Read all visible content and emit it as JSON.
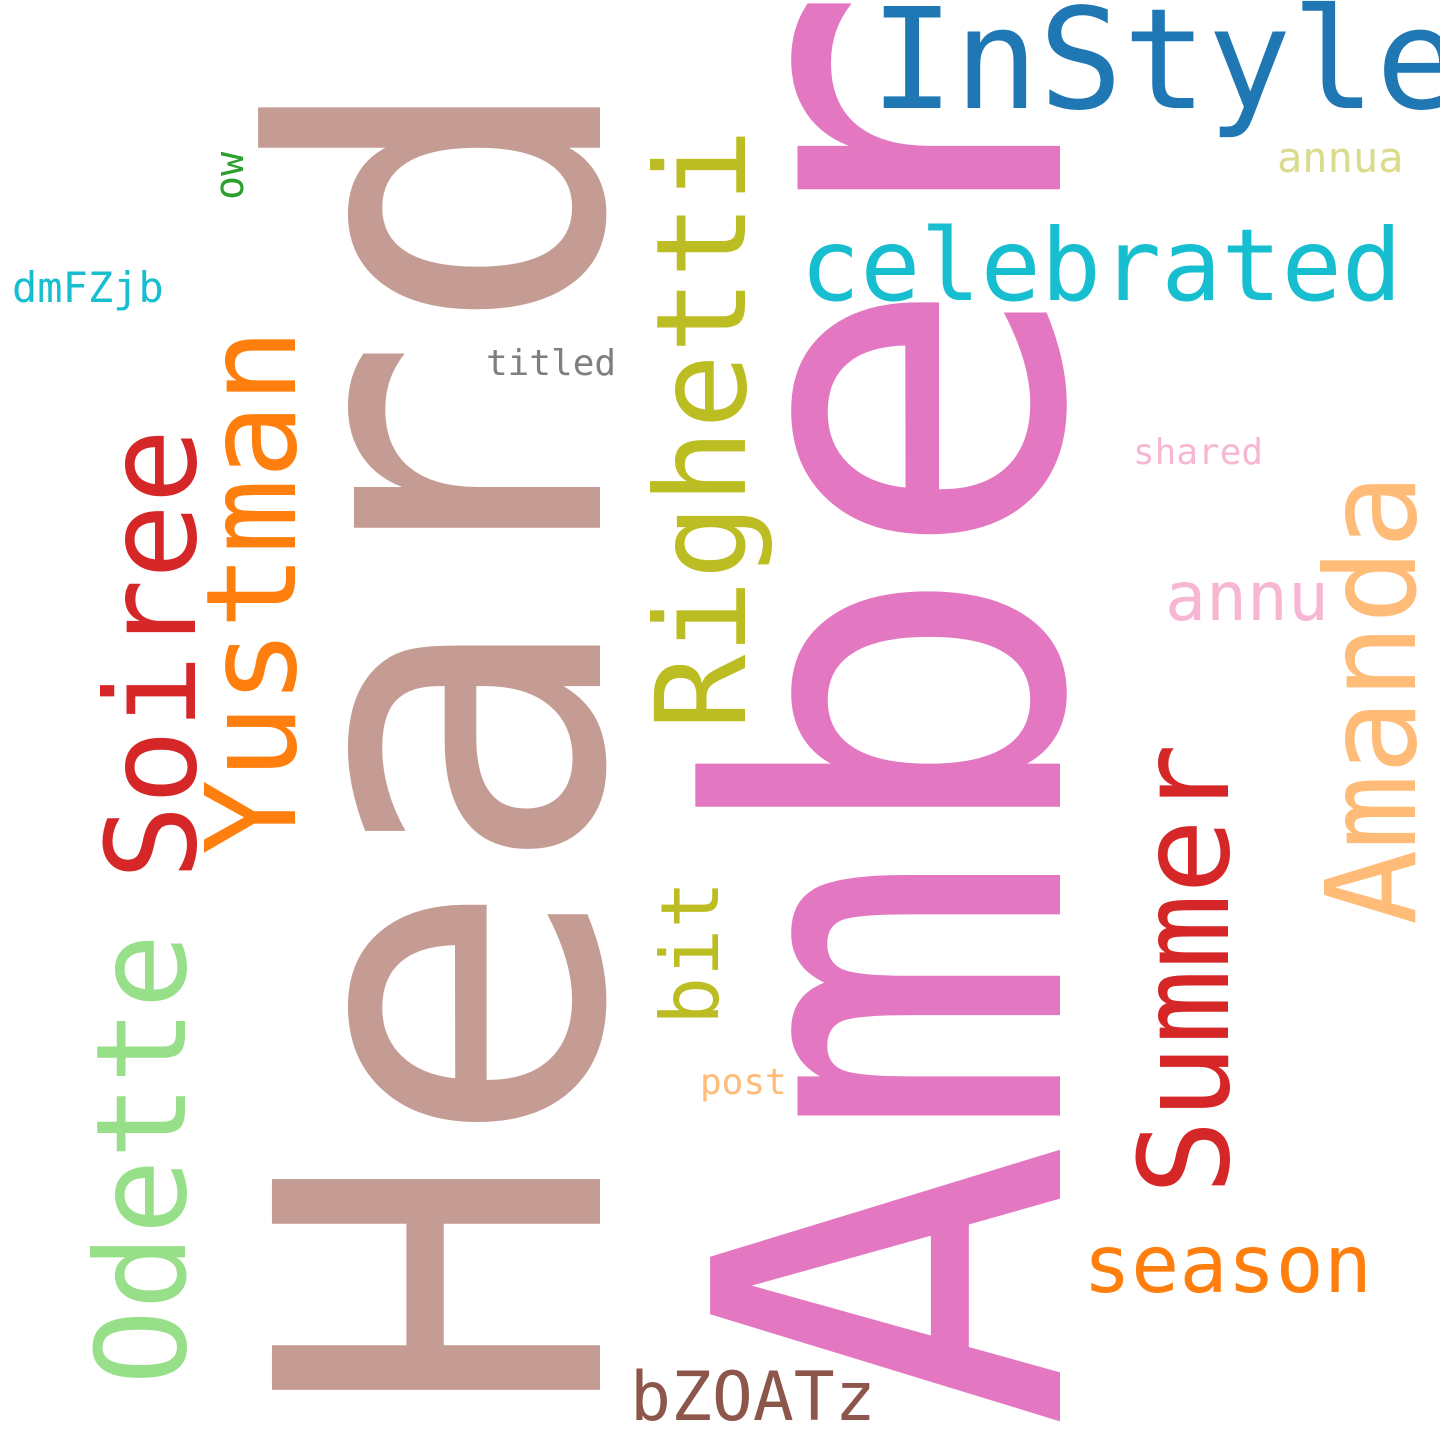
{
  "words": [
    {
      "text": "Amber",
      "color": "#e377c2"
    },
    {
      "text": "Heard",
      "color": "#c49c94"
    },
    {
      "text": "InStyle",
      "color": "#1f77b4"
    },
    {
      "text": "celebrated",
      "color": "#17becf"
    },
    {
      "text": "Righetti",
      "color": "#bcbd22"
    },
    {
      "text": "Yustman",
      "color": "#ff7f0e"
    },
    {
      "text": "Soiree",
      "color": "#d62728"
    },
    {
      "text": "Odette",
      "color": "#98df8a"
    },
    {
      "text": "Summer",
      "color": "#d62728"
    },
    {
      "text": "Amanda",
      "color": "#ffbb78"
    },
    {
      "text": "season",
      "color": "#ff7f0e"
    },
    {
      "text": "bZOATz",
      "color": "#8c564b"
    },
    {
      "text": "annu",
      "color": "#f7b6d2"
    },
    {
      "text": "annua",
      "color": "#dbdb8d"
    },
    {
      "text": "bit",
      "color": "#bcbd22"
    },
    {
      "text": "dmFZjb",
      "color": "#17becf"
    },
    {
      "text": "titled",
      "color": "#7f7f7f"
    },
    {
      "text": "shared",
      "color": "#f7b6d2"
    },
    {
      "text": "post",
      "color": "#ffbb78"
    },
    {
      "text": "ow",
      "color": "#2ca02c"
    }
  ]
}
